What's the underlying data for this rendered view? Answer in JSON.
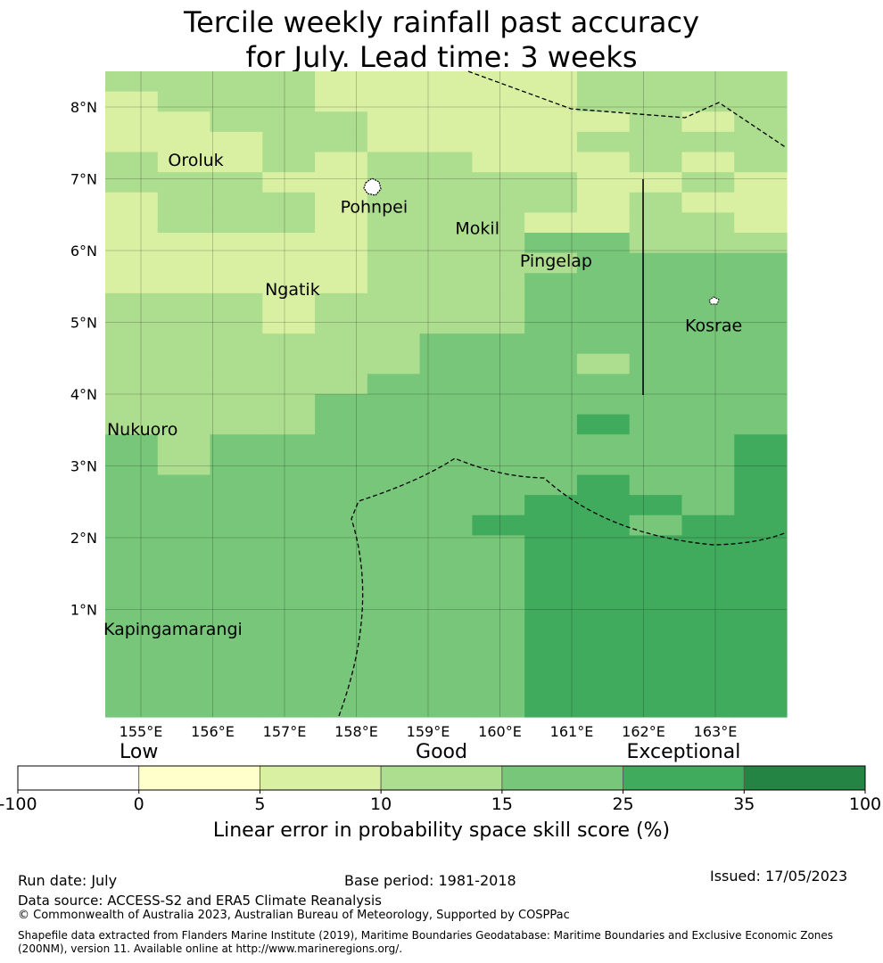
{
  "title": {
    "line1": "Tercile weekly rainfall past accuracy",
    "line2": "for July. Lead time: 3 weeks"
  },
  "map": {
    "lat_labels": [
      "8°N",
      "7°N",
      "6°N",
      "5°N",
      "4°N",
      "3°N",
      "2°N",
      "1°N"
    ],
    "lon_labels": [
      "155°E",
      "156°E",
      "157°E",
      "158°E",
      "159°E",
      "160°E",
      "161°E",
      "162°E",
      "163°E"
    ],
    "islands": [
      {
        "name": "Oroluk",
        "lon": 155.8,
        "lat": 7.6
      },
      {
        "name": "Pohnpei",
        "lon": 158.2,
        "lat": 6.95
      },
      {
        "name": "Mokil",
        "lon": 159.8,
        "lat": 6.65
      },
      {
        "name": "Pingelap",
        "lon": 160.7,
        "lat": 6.2
      },
      {
        "name": "Ngatik",
        "lon": 157.15,
        "lat": 5.8
      },
      {
        "name": "Kosrae",
        "lon": 163.0,
        "lat": 5.3
      },
      {
        "name": "Nukuoro",
        "lon": 154.95,
        "lat": 3.85
      },
      {
        "name": "Kapingamarangi",
        "lon": 154.9,
        "lat": 1.07
      }
    ],
    "skill_category_colors": [
      "#ffffff",
      "#ffffcc",
      "#d9f0a3",
      "#addd8e",
      "#78c679",
      "#41ab5d",
      "#238443"
    ],
    "grid_rows_north_to_south": [
      "3333222223333",
      "2333222223333",
      "2233322222323",
      "2223322223333",
      "3223233222323",
      "3332233332232",
      "2333233332322",
      "2333233322332",
      "2222233344333",
      "2222233334444",
      "2222233344444",
      "3332333344444",
      "3332333344444",
      "3333334444444",
      "3333334443444",
      "3333344444444",
      "3333444444444",
      "3333444445444",
      "4344444444445",
      "4344444444445",
      "4444444445445",
      "4444444455545",
      "4444444555455",
      "4444444455555",
      "4444444455555",
      "4444444455555",
      "4444444455555",
      "4444444455555",
      "4444444455555",
      "4444444455555",
      "4444444455555",
      "4444444455555"
    ]
  },
  "colorbar": {
    "categories": [
      {
        "label": "Low",
        "center_tick": 1
      },
      {
        "label": "Good",
        "center_tick": 3.5
      },
      {
        "label": "Exceptional",
        "center_tick": 5.5
      }
    ],
    "ticks": [
      "-100",
      "0",
      "5",
      "10",
      "15",
      "25",
      "35",
      "100"
    ],
    "title": "Linear error in probability space skill score (%)"
  },
  "footer": {
    "run_date": "Run date: July",
    "base_period": "Base period: 1981-2018",
    "issued": "Issued: 17/05/2023",
    "data_source": "Data source: ACCESS-S2 and ERA5 Climate Reanalysis",
    "copyright": "© Commonwealth of Australia 2023, Australian Bureau of Meteorology, Supported by COSPPac",
    "shapefile_line1": "Shapefile data extracted from Flanders Marine Institute (2019), Maritime Boundaries Geodatabase: Maritime Boundaries and Exclusive Economic Zones",
    "shapefile_line2": "(200NM), version 11. Available online at http://www.marineregions.org/."
  }
}
